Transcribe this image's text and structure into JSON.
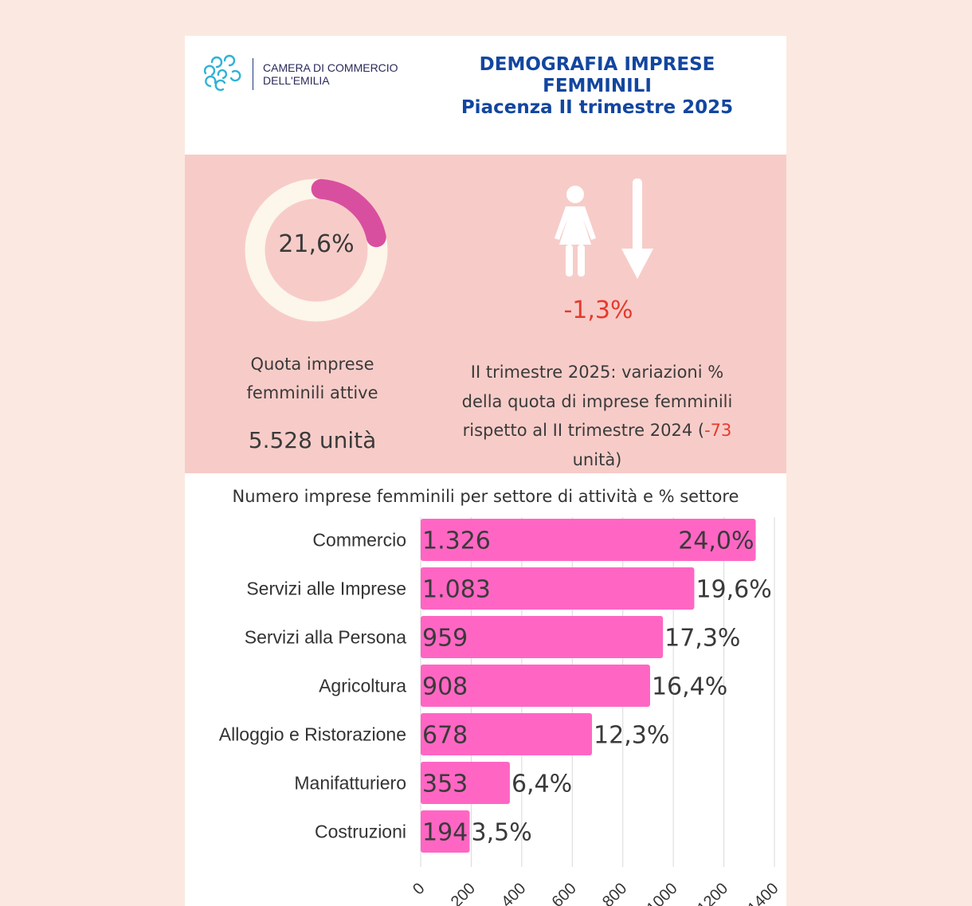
{
  "header": {
    "org_line1": "CAMERA DI COMMERCIO",
    "org_line2": "DELL'EMILIA",
    "title_line1": "DEMOGRAFIA IMPRESE",
    "title_line2": "FEMMINILI",
    "title_line3": "Piacenza II trimestre 2025"
  },
  "summary": {
    "share_value": "21,6%",
    "share_fraction": 0.216,
    "share_label_line1": "Quota imprese",
    "share_label_line2": "femminili attive",
    "units": "5.528 unità",
    "delta": "-1,3%",
    "variation_line1": "II trimestre 2025: variazioni %",
    "variation_line2": "della quota di imprese femminili",
    "variation_line3_pre": "rispetto al II trimestre 2024 (",
    "variation_units_change": "-73",
    "variation_line4": "unità)"
  },
  "colors": {
    "page_bg": "#fbe9e1",
    "panel_bg": "#f7ccc8",
    "title_blue": "#1246a0",
    "donut_track": "#fdf6ea",
    "donut_arc": "#d94fa0",
    "bar": "#ff66c4",
    "negative_red": "#e63a2e"
  },
  "chart_data": {
    "type": "bar",
    "orientation": "horizontal",
    "title": "Numero imprese femminili per settore di attività e % settore",
    "categories": [
      "Commercio",
      "Servizi alle Imprese",
      "Servizi alla Persona",
      "Agricoltura",
      "Alloggio e Ristorazione",
      "Manifatturiero",
      "Costruzioni"
    ],
    "values": [
      1326,
      1083,
      959,
      908,
      678,
      353,
      194
    ],
    "value_labels": [
      "1.326",
      "1.083",
      "959",
      "908",
      "678",
      "353",
      "194"
    ],
    "percent_labels": [
      "24,0%",
      "19,6%",
      "17,3%",
      "16,4%",
      "12,3%",
      "6,4%",
      "3,5%"
    ],
    "xlim": [
      0,
      1400
    ],
    "xticks": [
      "0",
      "200",
      "400",
      "600",
      "800",
      "1000",
      "1200",
      "1400"
    ],
    "xtick_values": [
      0,
      200,
      400,
      600,
      800,
      1000,
      1200,
      1400
    ],
    "grid": true
  }
}
